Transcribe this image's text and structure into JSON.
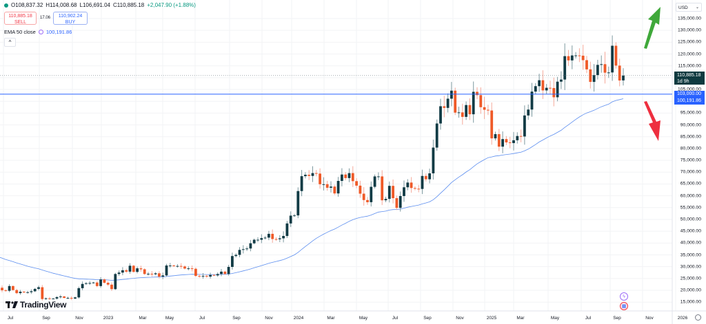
{
  "header": {
    "open": "O108,837.32",
    "high": "H114,008.68",
    "low": "L106,691.04",
    "close": "C110,885.18",
    "change": "+2,047.90 (+1.88%)"
  },
  "trade": {
    "sell_price": "110,885.18",
    "sell_label": "SELL",
    "spread": "17.06",
    "buy_price": "110,902.24",
    "buy_label": "BUY"
  },
  "indicator": {
    "label": "EMA 50 close",
    "value": "100,191.86"
  },
  "currency": "USD",
  "price_axis": [
    "135,000.00",
    "130,000.00",
    "125,000.00",
    "120,000.00",
    "115,000.00",
    "105,000.00",
    "95,000.00",
    "90,000.00",
    "85,000.00",
    "80,000.00",
    "75,000.00",
    "70,000.00",
    "65,000.00",
    "60,000.00",
    "55,000.00",
    "50,000.00",
    "45,000.00",
    "40,000.00",
    "35,000.00",
    "30,000.00",
    "25,000.00",
    "20,000.00",
    "15,000.00"
  ],
  "price_axis_values": [
    135000,
    130000,
    125000,
    120000,
    115000,
    105000,
    95000,
    90000,
    85000,
    80000,
    75000,
    70000,
    65000,
    60000,
    55000,
    50000,
    45000,
    40000,
    35000,
    30000,
    25000,
    20000,
    15000
  ],
  "time_axis": [
    "Jul",
    "Sep",
    "Nov",
    "2023",
    "Mar",
    "May",
    "Jul",
    "Sep",
    "Nov",
    "2024",
    "Mar",
    "May",
    "Jul",
    "Sep",
    "Nov",
    "2025",
    "Mar",
    "May",
    "Jul",
    "Sep",
    "Nov",
    "2026"
  ],
  "tags": {
    "last_price": "110,885.18",
    "countdown": "1d 9h",
    "level": "103,000.00",
    "ema": "100,191.86"
  },
  "brand": "TradingView",
  "colors": {
    "up": "#113b45",
    "down": "#ef5a28",
    "ema": "#5b8def",
    "level": "#2962ff",
    "arrow_up": "#3fa83a",
    "arrow_down": "#ee2f3f"
  },
  "chart_data": {
    "type": "candlestick",
    "interval": "weekly",
    "ylim": [
      13000,
      138000
    ],
    "horizontal_level": 103000,
    "last_price": 110885.18,
    "indicator": "EMA 50",
    "closes": [
      21.6,
      20.8,
      22.5,
      23.2,
      23.3,
      23.8,
      24.4,
      21.1,
      20.0,
      19.8,
      21.8,
      20.1,
      18.8,
      19.4,
      19.1,
      19.2,
      19.6,
      20.6,
      21.3,
      16.3,
      16.6,
      16.5,
      16.5,
      17.1,
      17.4,
      16.8,
      16.8,
      16.5,
      17.0,
      20.9,
      22.7,
      23.0,
      23.1,
      23.3,
      21.8,
      24.6,
      23.2,
      22.4,
      20.5,
      26.9,
      27.5,
      28.5,
      27.9,
      30.4,
      27.8,
      29.3,
      28.9,
      26.9,
      27.0,
      26.8,
      27.2,
      25.8,
      26.3,
      30.5,
      30.5,
      30.3,
      30.3,
      30.1,
      29.2,
      29.3,
      29.1,
      26.1,
      26.0,
      26.1,
      25.8,
      26.5,
      26.3,
      26.9,
      27.9,
      26.9,
      29.9,
      34.5,
      35.0,
      37.1,
      37.4,
      37.7,
      39.9,
      41.4,
      41.4,
      42.1,
      42.3,
      43.9,
      41.7,
      41.6,
      42.0,
      43.0,
      48.3,
      51.6,
      51.7,
      62.0,
      68.3,
      68.9,
      68.4,
      69.6,
      69.4,
      64.9,
      64.9,
      63.4,
      63.9,
      61.0,
      66.3,
      69.0,
      67.5,
      69.6,
      66.2,
      64.3,
      60.9,
      58.2,
      57.3,
      63.8,
      68.2,
      68.2,
      58.1,
      58.7,
      64.2,
      59.0,
      54.9,
      59.9,
      63.6,
      65.6,
      63.3,
      63.0,
      62.9,
      68.4,
      67.0,
      69.5,
      80.4,
      90.6,
      97.9,
      97.2,
      101.1,
      104.5,
      95.2,
      95.3,
      93.4,
      98.4,
      94.5,
      104.0,
      102.6,
      97.5,
      96.4,
      96.1,
      84.3,
      86.1,
      80.8,
      84.0,
      82.6,
      82.3,
      83.5,
      85.3,
      85.1,
      94.0,
      96.5,
      104.1,
      106.4,
      108.9,
      104.6,
      105.7,
      105.6,
      101.7,
      108.3,
      109.2,
      119.1,
      117.3,
      119.4,
      119.4,
      119.3,
      117.4,
      113.5,
      108.2,
      111.1,
      115.4,
      115.7,
      112.1,
      112.2,
      123.5,
      115.1,
      108.8,
      110.9
    ],
    "closes_unit": "thousand USD"
  }
}
